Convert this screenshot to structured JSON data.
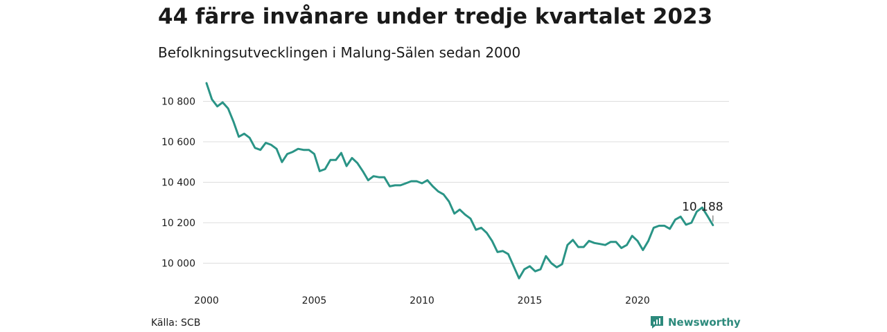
{
  "title": "44 färre invånare under tredje kvartalet 2023",
  "subtitle": "Befolkningsutvecklingen i Malung-Sälen sedan 2000",
  "source": "Källa: SCB",
  "brand": {
    "name": "Newsworthy",
    "icon": "newsworthy-logo-icon",
    "color": "#2d8a7c"
  },
  "chart_data": {
    "type": "line",
    "title": "44 färre invånare under tredje kvartalet 2023",
    "subtitle": "Befolkningsutvecklingen i Malung-Sälen sedan 2000",
    "xlabel": "",
    "ylabel": "",
    "x_ticks": [
      2000,
      2005,
      2010,
      2015,
      2020
    ],
    "y_ticks": [
      10000,
      10200,
      10400,
      10600,
      10800
    ],
    "y_tick_labels": [
      "10 000",
      "10 200",
      "10 400",
      "10 600",
      "10 800"
    ],
    "xlim": [
      2000,
      2023.75
    ],
    "ylim": [
      9920,
      10880
    ],
    "grid": "horizontal",
    "line_color": "#2a9486",
    "series": [
      {
        "x": [
          2000.0,
          2000.25,
          2000.5,
          2000.75,
          2001.0,
          2001.25,
          2001.5,
          2001.75,
          2002.0,
          2002.25,
          2002.5,
          2002.75,
          2003.0,
          2003.25,
          2003.5,
          2003.75,
          2004.0,
          2004.25,
          2004.5,
          2004.75,
          2005.0,
          2005.25,
          2005.5,
          2005.75,
          2006.0,
          2006.25,
          2006.5,
          2006.75,
          2007.0,
          2007.25,
          2007.5,
          2007.75,
          2008.0,
          2008.25,
          2008.5,
          2008.75,
          2009.0,
          2009.25,
          2009.5,
          2009.75,
          2010.0,
          2010.25,
          2010.5,
          2010.75,
          2011.0,
          2011.25,
          2011.5,
          2011.75,
          2012.0,
          2012.25,
          2012.5,
          2012.75,
          2013.0,
          2013.25,
          2013.5,
          2013.75,
          2014.0,
          2014.25,
          2014.5,
          2014.75,
          2015.0,
          2015.25,
          2015.5,
          2015.75,
          2016.0,
          2016.25,
          2016.5,
          2016.75,
          2017.0,
          2017.25,
          2017.5,
          2017.75,
          2018.0,
          2018.25,
          2018.5,
          2018.75,
          2019.0,
          2019.25,
          2019.5,
          2019.75,
          2020.0,
          2020.25,
          2020.5,
          2020.75,
          2021.0,
          2021.25,
          2021.5,
          2021.75,
          2022.0,
          2022.25,
          2022.5,
          2022.75,
          2023.0,
          2023.25,
          2023.5
        ],
        "values": [
          10890,
          10810,
          10775,
          10795,
          10765,
          10700,
          10625,
          10640,
          10620,
          10570,
          10560,
          10595,
          10585,
          10565,
          10500,
          10540,
          10550,
          10565,
          10560,
          10560,
          10540,
          10455,
          10465,
          10510,
          10510,
          10545,
          10480,
          10520,
          10495,
          10455,
          10410,
          10430,
          10425,
          10425,
          10380,
          10385,
          10385,
          10395,
          10405,
          10405,
          10395,
          10410,
          10380,
          10355,
          10340,
          10305,
          10245,
          10265,
          10240,
          10220,
          10165,
          10175,
          10150,
          10110,
          10055,
          10060,
          10045,
          9985,
          9925,
          9970,
          9985,
          9960,
          9970,
          10035,
          10000,
          9980,
          9995,
          10090,
          10115,
          10080,
          10080,
          10110,
          10100,
          10095,
          10090,
          10105,
          10105,
          10075,
          10090,
          10135,
          10110,
          10065,
          10110,
          10175,
          10185,
          10185,
          10170,
          10215,
          10230,
          10190,
          10200,
          10255,
          10275,
          10232,
          10188
        ]
      }
    ],
    "annotation": {
      "label": "10 188",
      "x": 2023.5,
      "y": 10188
    }
  }
}
